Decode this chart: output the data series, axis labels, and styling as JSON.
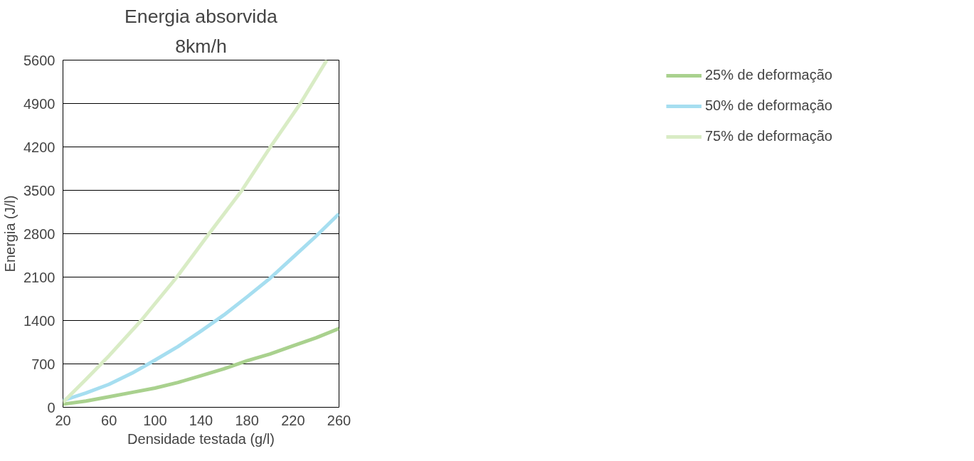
{
  "chart_data": {
    "type": "line",
    "title": "Energia absorvida",
    "subtitle": "8km/h",
    "xlabel": "Densidade testada (g/l)",
    "ylabel": "Energia (J/l)",
    "x": [
      20,
      40,
      60,
      80,
      100,
      120,
      140,
      160,
      180,
      200,
      220,
      240,
      260
    ],
    "series": [
      {
        "name": "25% de deformação",
        "color": "#a9d18e",
        "values": [
          50,
          100,
          170,
          240,
          310,
          400,
          510,
          620,
          750,
          860,
          990,
          1120,
          1270
        ]
      },
      {
        "name": "50% de deformação",
        "color": "#a6def0",
        "values": [
          110,
          230,
          370,
          550,
          760,
          980,
          1230,
          1490,
          1780,
          2080,
          2420,
          2760,
          3120
        ]
      },
      {
        "name": "75% de deformação",
        "color": "#d9ecc5",
        "x": [
          20,
          40,
          60,
          88,
          119,
          147,
          175.6,
          200.4,
          226.4,
          249.4
        ],
        "values": [
          80,
          450,
          830,
          1400,
          2100,
          2800,
          3500,
          4200,
          4900,
          5600
        ]
      }
    ],
    "xlim": [
      20,
      260
    ],
    "ylim": [
      0,
      5600
    ],
    "xticks": [
      20,
      60,
      100,
      140,
      180,
      220,
      260
    ],
    "yticks": [
      0,
      700,
      1400,
      2100,
      2800,
      3500,
      4200,
      4900,
      5600
    ],
    "grid": "y",
    "legend": "right",
    "line_style": "solid"
  }
}
